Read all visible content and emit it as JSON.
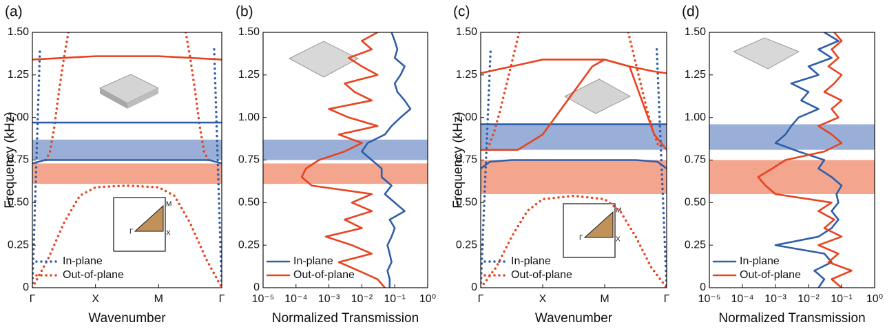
{
  "chart_data": [
    {
      "type": "line",
      "panel_label": "(a)",
      "ylabel": "Frequency (kHz)",
      "xlabel": "Wavenumber",
      "xlim": [
        0,
        3
      ],
      "xticks": [
        {
          "value": 0,
          "label": "Γ"
        },
        {
          "value": 1,
          "label": "X"
        },
        {
          "value": 2,
          "label": "M"
        },
        {
          "value": 3,
          "label": "Γ"
        }
      ],
      "ylim": [
        0,
        1.5
      ],
      "yticks": [
        0,
        0.25,
        {
          "value": 0.5,
          "label": "0.50"
        },
        0.75,
        {
          "value": 1,
          "label": "1.00"
        },
        1.25,
        {
          "value": 1.5,
          "label": "1.50"
        }
      ],
      "legend": "lower left",
      "inset_labels": [
        "Γ",
        "X",
        "M"
      ],
      "bands": [
        {
          "from": 0.75,
          "to": 0.87,
          "color": "#8ea6d3"
        },
        {
          "from": 0.61,
          "to": 0.73,
          "color": "#f29b82"
        }
      ],
      "series": [
        {
          "name": "In-plane",
          "color": "#2f5ea8",
          "style": "dotted",
          "x": [
            0,
            0.03,
            0.06,
            0.09,
            0.12,
            0.12,
            2.88,
            2.91,
            2.94,
            2.97,
            3
          ],
          "values": [
            0,
            0.35,
            0.7,
            1.05,
            1.4,
            null,
            1.4,
            1.05,
            0.7,
            0.35,
            0
          ]
        },
        {
          "name": "Out-of-plane",
          "color": "#e8431f",
          "style": "dotted",
          "x": [
            0,
            0.25,
            0.5,
            0.75,
            1,
            1.5,
            2,
            2.25,
            2.5,
            2.75,
            3,
            3,
            0.57,
            0.5,
            0.42,
            0.35,
            0.28,
            0.2,
            0.2,
            2.43,
            2.5,
            2.58,
            2.65,
            2.72,
            2.8
          ],
          "values": [
            0,
            0.17,
            0.38,
            0.54,
            0.59,
            0.6,
            0.59,
            0.54,
            0.38,
            0.17,
            0,
            null,
            1.5,
            1.35,
            1.15,
            0.95,
            0.8,
            0.74,
            null,
            1.5,
            1.35,
            1.15,
            0.95,
            0.8,
            0.74
          ]
        },
        {
          "color": "#2f5ea8",
          "style": "solid",
          "x": [
            0,
            3
          ],
          "values": [
            0.97,
            0.97
          ]
        },
        {
          "color": "#2f5ea8",
          "style": "solid",
          "x": [
            0,
            0.2,
            1,
            2,
            2.8,
            3
          ],
          "values": [
            0.73,
            0.75,
            0.75,
            0.75,
            0.75,
            0.73
          ]
        },
        {
          "color": "#e8431f",
          "style": "solid",
          "x": [
            0,
            0.5,
            1,
            2,
            2.5,
            3
          ],
          "values": [
            1.34,
            1.35,
            1.36,
            1.36,
            1.35,
            1.34
          ]
        }
      ]
    },
    {
      "type": "line",
      "panel_label": "(b)",
      "xlabel": "Normalized Transmission",
      "xscale": "log",
      "xlim": [
        1e-05,
        1
      ],
      "xticks": [
        {
          "value": 1e-05,
          "label": "10⁻⁵"
        },
        {
          "value": 0.0001,
          "label": "10⁻⁴"
        },
        {
          "value": 0.001,
          "label": "10⁻³"
        },
        {
          "value": 0.01,
          "label": "10⁻²"
        },
        {
          "value": 0.1,
          "label": "10⁻¹"
        },
        {
          "value": 1,
          "label": "10⁰"
        }
      ],
      "ylim": [
        0,
        1.5
      ],
      "yticks": [
        0,
        0.25,
        {
          "value": 0.5,
          "label": "0.50"
        },
        0.75,
        {
          "value": 1,
          "label": "1.00"
        },
        1.25,
        {
          "value": 1.5,
          "label": "1.50"
        }
      ],
      "legend": "lower left",
      "bands": [
        {
          "from": 0.75,
          "to": 0.87,
          "color": "#8ea6d3"
        },
        {
          "from": 0.61,
          "to": 0.73,
          "color": "#f29b82"
        }
      ],
      "y": [
        0,
        0.05,
        0.1,
        0.15,
        0.2,
        0.25,
        0.3,
        0.35,
        0.4,
        0.45,
        0.5,
        0.55,
        0.6,
        0.65,
        0.7,
        0.75,
        0.8,
        0.85,
        0.9,
        0.95,
        1,
        1.05,
        1.1,
        1.15,
        1.2,
        1.25,
        1.3,
        1.35,
        1.4,
        1.45,
        1.5
      ],
      "series": [
        {
          "name": "In-plane",
          "color": "#2f5ea8",
          "style": "solid",
          "values": [
            0.07,
            0.07,
            0.06,
            0.08,
            0.07,
            0.06,
            0.08,
            0.1,
            0.07,
            0.2,
            0.1,
            0.05,
            0.08,
            0.04,
            0.04,
            0.02,
            0.01,
            0.015,
            0.05,
            0.08,
            0.15,
            0.3,
            0.2,
            0.12,
            0.1,
            0.15,
            0.2,
            0.1,
            0.12,
            0.1,
            0.08
          ]
        },
        {
          "name": "Out-of-plane",
          "color": "#e8431f",
          "style": "solid",
          "values": [
            0.05,
            0.03,
            0.008,
            0.002,
            0.02,
            0.005,
            0.0008,
            0.01,
            0.003,
            0.02,
            0.005,
            0.02,
            0.0003,
            0.00015,
            0.0002,
            0.0005,
            0.003,
            0.01,
            0.002,
            0.03,
            0.004,
            0.001,
            0.02,
            0.006,
            0.003,
            0.03,
            0.01,
            0.004,
            0.02,
            0.01,
            0.03
          ]
        }
      ]
    },
    {
      "type": "line",
      "panel_label": "(c)",
      "ylabel": "Frequency (kHz)",
      "xlabel": "Wavenumber",
      "xlim": [
        0,
        3
      ],
      "xticks": [
        {
          "value": 0,
          "label": "Γ"
        },
        {
          "value": 1,
          "label": "X"
        },
        {
          "value": 2,
          "label": "M"
        },
        {
          "value": 3,
          "label": "Γ"
        }
      ],
      "ylim": [
        0,
        1.5
      ],
      "yticks": [
        0,
        0.25,
        {
          "value": 0.5,
          "label": "0.50"
        },
        0.75,
        {
          "value": 1,
          "label": "1.00"
        },
        1.25,
        {
          "value": 1.5,
          "label": "1.50"
        }
      ],
      "legend": "lower left",
      "inset_labels": [
        "Γ",
        "X",
        "M"
      ],
      "bands": [
        {
          "from": 0.81,
          "to": 0.96,
          "color": "#8ea6d3"
        },
        {
          "from": 0.55,
          "to": 0.75,
          "color": "#f29b82"
        }
      ],
      "series": [
        {
          "name": "In-plane",
          "color": "#2f5ea8",
          "style": "dotted",
          "x": [
            0,
            0.04,
            0.08,
            0.12,
            0.16,
            0.16,
            2.84,
            2.88,
            2.92,
            2.96,
            3
          ],
          "values": [
            0,
            0.35,
            0.7,
            1.05,
            1.4,
            null,
            1.4,
            1.05,
            0.7,
            0.35,
            0
          ]
        },
        {
          "name": "Out-of-plane",
          "color": "#e8431f",
          "style": "dotted",
          "x": [
            0,
            0.25,
            0.5,
            0.75,
            1,
            1.5,
            2,
            2.25,
            2.5,
            2.75,
            3,
            3,
            0.62,
            0.52,
            0.42,
            0.32,
            0.22,
            0.12,
            0.12,
            2.38,
            2.48,
            2.58,
            2.68,
            2.78,
            2.88
          ],
          "values": [
            0,
            0.12,
            0.3,
            0.45,
            0.52,
            0.54,
            0.52,
            0.45,
            0.3,
            0.12,
            0,
            null,
            1.5,
            1.35,
            1.2,
            1.05,
            0.92,
            0.82,
            null,
            1.5,
            1.35,
            1.2,
            1.05,
            0.92,
            0.82
          ]
        },
        {
          "color": "#2f5ea8",
          "style": "solid",
          "x": [
            0,
            3
          ],
          "values": [
            0.96,
            0.96
          ]
        },
        {
          "color": "#2f5ea8",
          "style": "solid",
          "x": [
            0,
            0.15,
            0.5,
            1,
            2,
            2.5,
            2.85,
            3
          ],
          "values": [
            0.7,
            0.74,
            0.75,
            0.75,
            0.75,
            0.75,
            0.74,
            0.7
          ]
        },
        {
          "color": "#e8431f",
          "style": "solid",
          "x": [
            0,
            0.6,
            1,
            1.4,
            1.8,
            2,
            2.4,
            2.8,
            3
          ],
          "values": [
            0.81,
            0.81,
            0.9,
            1.1,
            1.3,
            1.34,
            1.3,
            1.27,
            1.26
          ]
        },
        {
          "color": "#e8431f",
          "style": "solid",
          "x": [
            0,
            0.5,
            1,
            1.5,
            2,
            2.4,
            2.8,
            3
          ],
          "values": [
            1.26,
            1.3,
            1.34,
            1.34,
            1.34,
            1.3,
            0.9,
            0.81
          ]
        }
      ]
    },
    {
      "type": "line",
      "panel_label": "(d)",
      "xlabel": "Normalized Transmission",
      "xscale": "log",
      "xlim": [
        1e-05,
        1
      ],
      "xticks": [
        {
          "value": 1e-05,
          "label": "10⁻⁵"
        },
        {
          "value": 0.0001,
          "label": "10⁻⁴"
        },
        {
          "value": 0.001,
          "label": "10⁻³"
        },
        {
          "value": 0.01,
          "label": "10⁻²"
        },
        {
          "value": 0.1,
          "label": "10⁻¹"
        },
        {
          "value": 1,
          "label": "10⁰"
        }
      ],
      "ylim": [
        0,
        1.5
      ],
      "yticks": [
        0,
        0.25,
        {
          "value": 0.5,
          "label": "0.50"
        },
        0.75,
        {
          "value": 1,
          "label": "1.00"
        },
        1.25,
        {
          "value": 1.5,
          "label": "1.50"
        }
      ],
      "legend": "lower left",
      "bands": [
        {
          "from": 0.81,
          "to": 0.96,
          "color": "#8ea6d3"
        },
        {
          "from": 0.55,
          "to": 0.75,
          "color": "#f29b82"
        }
      ],
      "y": [
        0,
        0.05,
        0.1,
        0.15,
        0.2,
        0.25,
        0.3,
        0.35,
        0.4,
        0.45,
        0.5,
        0.55,
        0.6,
        0.65,
        0.7,
        0.75,
        0.8,
        0.85,
        0.9,
        0.95,
        1,
        1.05,
        1.1,
        1.15,
        1.2,
        1.25,
        1.3,
        1.35,
        1.4,
        1.45,
        1.5
      ],
      "series": [
        {
          "name": "In-plane",
          "color": "#2f5ea8",
          "style": "solid",
          "values": [
            0.02,
            0.03,
            0.015,
            0.05,
            0.03,
            0.001,
            0.02,
            0.05,
            0.08,
            0.05,
            0.08,
            0.07,
            0.1,
            0.05,
            0.02,
            0.03,
            0.005,
            0.001,
            0.002,
            0.003,
            0.005,
            0.02,
            0.006,
            0.01,
            0.003,
            0.02,
            0.01,
            0.05,
            0.02,
            0.08,
            0.03
          ]
        },
        {
          "name": "Out-of-plane",
          "color": "#e8431f",
          "style": "solid",
          "values": [
            0.1,
            0.05,
            0.2,
            0.04,
            0.08,
            0.02,
            0.1,
            0.03,
            0.06,
            0.02,
            0.05,
            0.001,
            0.0005,
            0.0003,
            0.0008,
            0.002,
            0.03,
            0.1,
            0.05,
            0.02,
            0.08,
            0.05,
            0.1,
            0.03,
            0.06,
            0.1,
            0.04,
            0.08,
            0.05,
            0.1,
            0.06
          ]
        }
      ]
    }
  ]
}
